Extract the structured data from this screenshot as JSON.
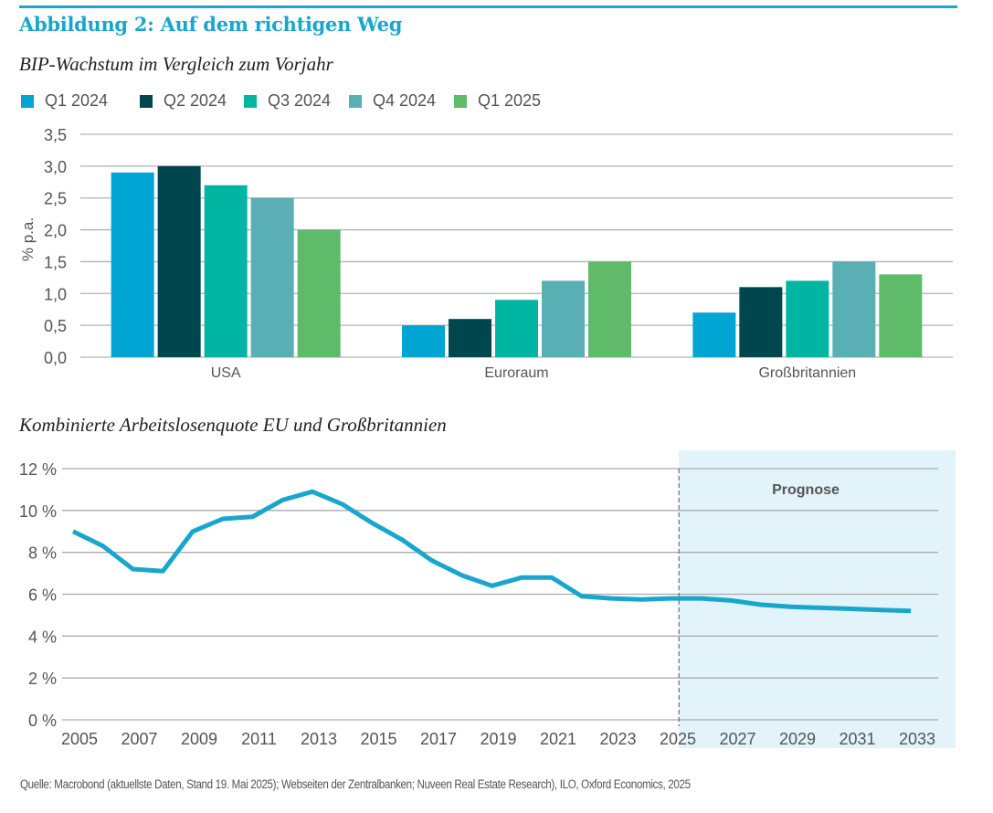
{
  "figure": {
    "title": "Abbildung 2: Auf dem richtigen Weg",
    "source": "Quelle: Macrobond (aktuellste Daten, Stand 19. Mai 2025); Webseiten der Zentralbanken; Nuveen Real Estate Research), ILO, Oxford Economics, 2025",
    "accent_color": "#19a6cd"
  },
  "chart_data": [
    {
      "type": "bar",
      "title": "BIP-Wachstum im Vergleich zum Vorjahr",
      "xlabel": "",
      "ylabel": "% p.a.",
      "ylim": [
        0,
        3.5
      ],
      "yticks": [
        0,
        0.5,
        1.0,
        1.5,
        2.0,
        2.5,
        3.0,
        3.5
      ],
      "ytick_labels": [
        "0,0",
        "0,5",
        "1,0",
        "1,5",
        "2,0",
        "2,5",
        "3,0",
        "3,5"
      ],
      "grid": true,
      "legend_position": "top-left",
      "categories": [
        "USA",
        "Euroraum",
        "Großbritannien"
      ],
      "series": [
        {
          "name": "Q1 2024",
          "color": "#00a5d4",
          "values": [
            2.9,
            0.5,
            0.7
          ]
        },
        {
          "name": "Q2 2024",
          "color": "#00464f",
          "values": [
            3.0,
            0.6,
            1.1
          ]
        },
        {
          "name": "Q3 2024",
          "color": "#00b6a3",
          "values": [
            2.7,
            0.9,
            1.2
          ]
        },
        {
          "name": "Q4 2024",
          "color": "#5aafb5",
          "values": [
            2.5,
            1.2,
            1.5
          ]
        },
        {
          "name": "Q1 2025",
          "color": "#5fba69",
          "values": [
            2.0,
            1.5,
            1.3
          ]
        }
      ]
    },
    {
      "type": "line",
      "title": "Kombinierte Arbeitslosenquote EU und Großbritannien",
      "xlabel": "",
      "ylabel": "",
      "ylim": [
        0,
        12
      ],
      "yticks": [
        0,
        2,
        4,
        6,
        8,
        10,
        12
      ],
      "ytick_labels": [
        "0 %",
        "2 %",
        "4 %",
        "6 %",
        "8 %",
        "10 %",
        "12 %"
      ],
      "xlim": [
        2005,
        2033
      ],
      "xticks": [
        2005,
        2007,
        2009,
        2011,
        2013,
        2015,
        2017,
        2019,
        2021,
        2023,
        2025,
        2027,
        2029,
        2031,
        2033
      ],
      "grid": true,
      "forecast_region": {
        "start": 2025.25,
        "label": "Prognose",
        "color": "#e2f3f9"
      },
      "series": [
        {
          "name": "Arbeitslosenquote",
          "color": "#19a6cd",
          "x": [
            2005,
            2006,
            2007,
            2008,
            2009,
            2010,
            2011,
            2012,
            2013,
            2014,
            2015,
            2016,
            2017,
            2018,
            2019,
            2020,
            2021,
            2022,
            2023,
            2024,
            2025,
            2026,
            2027,
            2028,
            2029,
            2030,
            2031,
            2032,
            2033
          ],
          "y": [
            9.0,
            8.3,
            7.2,
            7.1,
            9.0,
            9.6,
            9.7,
            10.5,
            10.9,
            10.3,
            9.4,
            8.6,
            7.6,
            6.9,
            6.4,
            6.8,
            6.8,
            5.9,
            5.8,
            5.75,
            5.8,
            5.8,
            5.7,
            5.5,
            5.4,
            5.35,
            5.3,
            5.25,
            5.2
          ]
        }
      ]
    }
  ]
}
